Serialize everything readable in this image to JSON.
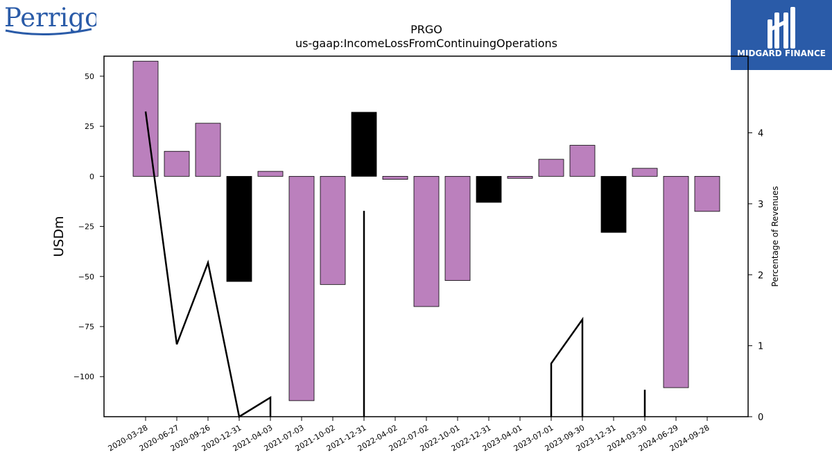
{
  "brand": {
    "company_logo_text": "Perrigo",
    "publisher_logo_text": "MIDGARD FINANCE",
    "company_color": "#2a5ba8",
    "publisher_bg": "#2a5ba8"
  },
  "chart_data": {
    "type": "bar",
    "title": "PRGO",
    "subtitle": "us-gaap:IncomeLossFromContinuingOperations",
    "ylabel": "USDm",
    "ylabel_right": "Percentage of Revenues",
    "ylim": [
      -120,
      60
    ],
    "ylim_right": [
      0,
      5.08
    ],
    "yticks": [
      50,
      25,
      0,
      -25,
      -50,
      -75,
      -100
    ],
    "yticks_right": [
      0,
      1,
      2,
      3,
      4
    ],
    "categories": [
      "2020-03-28",
      "2020-06-27",
      "2020-09-26",
      "2020-12-31",
      "2021-04-03",
      "2021-07-03",
      "2021-10-02",
      "2021-12-31",
      "2022-04-02",
      "2022-07-02",
      "2022-10-01",
      "2022-12-31",
      "2023-04-01",
      "2023-07-01",
      "2023-09-30",
      "2023-12-31",
      "2024-03-30",
      "2024-06-29",
      "2024-09-28"
    ],
    "series": [
      {
        "values": [
          57.5,
          12.5,
          26.5,
          -52.5,
          2.5,
          -112,
          -54,
          32,
          -1.5,
          -65,
          -52,
          -13,
          -1,
          8.5,
          15.5,
          -28,
          4,
          -105.5,
          -17.5
        ],
        "colors": [
          "#bb80bd",
          "#bb80bd",
          "#bb80bd",
          "#000000",
          "#bb80bd",
          "#bb80bd",
          "#bb80bd",
          "#000000",
          "#bb80bd",
          "#bb80bd",
          "#bb80bd",
          "#000000",
          "#bb80bd",
          "#bb80bd",
          "#bb80bd",
          "#000000",
          "#bb80bd",
          "#bb80bd",
          "#bb80bd"
        ]
      },
      {
        "axis": "right",
        "type": "line",
        "color": "#000000",
        "values": [
          4.3,
          1.02,
          2.17,
          0,
          0.27,
          null,
          null,
          2.9,
          null,
          null,
          null,
          null,
          null,
          0.75,
          1.37,
          null,
          0.38,
          null,
          null
        ]
      }
    ],
    "grid": false
  }
}
